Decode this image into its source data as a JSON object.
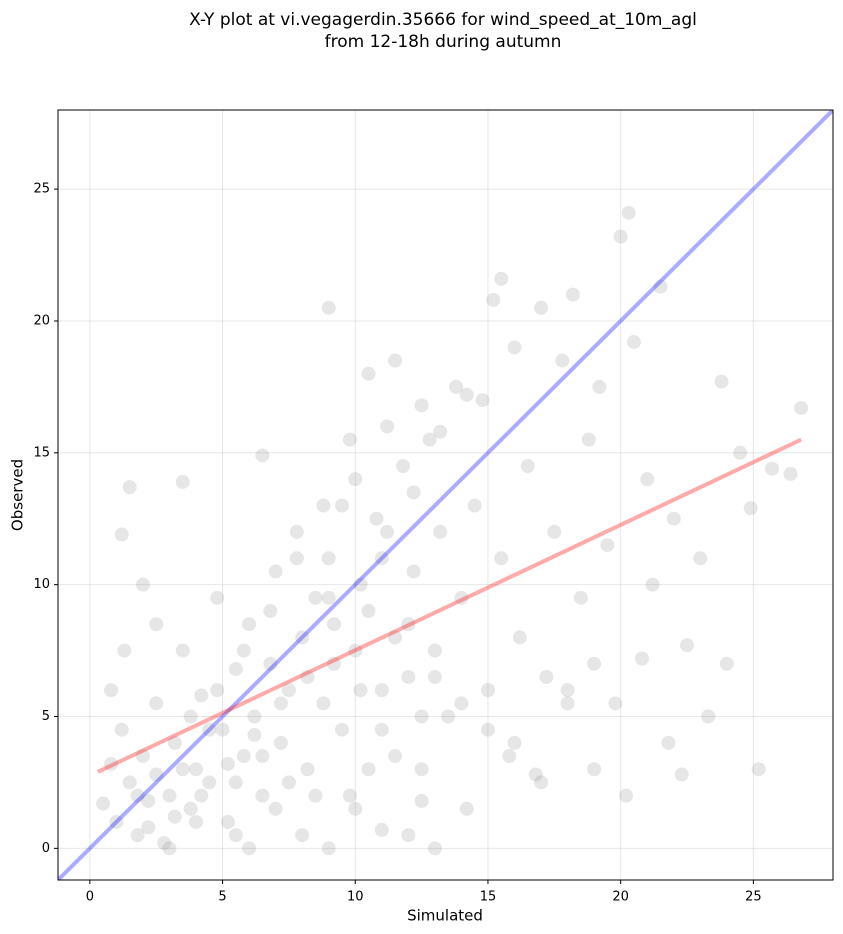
{
  "chart_data": {
    "type": "scatter",
    "title": "X-Y plot at vi.vegagerdin.35666 for wind_speed_at_10m_agl",
    "subtitle": "from 12-18h during autumn",
    "x_label": "Simulated",
    "y_label": "Observed",
    "xlim": [
      -1.2,
      28.0
    ],
    "ylim": [
      -1.2,
      28.0
    ],
    "xticks": [
      0,
      5,
      10,
      15,
      20,
      25
    ],
    "yticks": [
      0,
      5,
      10,
      15,
      20,
      25
    ],
    "grid": true,
    "series": [
      {
        "color": "#808080",
        "x": [
          0.5,
          0.8,
          1,
          1.2,
          1.5,
          1.8,
          2,
          2.2,
          2.5,
          2.8,
          3,
          3.2,
          3.5,
          3.8,
          4,
          4.2,
          4.5,
          4.8,
          5,
          5.2,
          5.5,
          5.8,
          6,
          6.2,
          6.5,
          6.8,
          7,
          7.2,
          7.5,
          7.8,
          8,
          8.2,
          8.5,
          8.8,
          9,
          9.2,
          9.5,
          9.8,
          10,
          10.2,
          10.5,
          10.8,
          11,
          11.2,
          11.5,
          11.8,
          12,
          12.2,
          12.5,
          12.8,
          13,
          13.2,
          13.5,
          13.8,
          14,
          14.2,
          14.5,
          14.8,
          15,
          15.2,
          15.5,
          15.8,
          16,
          16.2,
          16.5,
          16.8,
          17,
          17.2,
          17.5,
          17.8,
          18,
          18.2,
          18.5,
          18.8,
          19,
          19.2,
          19.5,
          19.8,
          20,
          20.2,
          20.5,
          20.8,
          21,
          21.2,
          21.5,
          21.8,
          22,
          22.3,
          22.5,
          23,
          23.3,
          23.8,
          24,
          24.5,
          24.9,
          25.2,
          25.7,
          26.4,
          26.8,
          20.3,
          9,
          15.5,
          1.5,
          2,
          3.5,
          6.5,
          1.2,
          0.8,
          1.3,
          2.5,
          3,
          4,
          5.5,
          6,
          7,
          8,
          9,
          10,
          11,
          12,
          13,
          12.5,
          11.5,
          10.5,
          9.5,
          8.5,
          7.5,
          6.5,
          5.5,
          4.5,
          3.5,
          2.5,
          1.8,
          2.2,
          3.2,
          4.2,
          5.2,
          6.2,
          7.2,
          8.2,
          9.2,
          10.2,
          11.2,
          12.2,
          13.2,
          14.2,
          10.5,
          11.5,
          12.5,
          9.8,
          8.8,
          7.8,
          6.8,
          5.8,
          4.8,
          3.8,
          11,
          12,
          13,
          14,
          15,
          16,
          17,
          18,
          19,
          12.5,
          11,
          10,
          9
        ],
        "values": [
          1.7,
          3.2,
          1,
          4.5,
          2.5,
          0.5,
          3.5,
          1.8,
          5.5,
          0.2,
          2,
          4,
          7.5,
          1.5,
          3,
          5.8,
          2.5,
          9.5,
          4.5,
          1,
          6.8,
          3.5,
          8.5,
          5,
          2,
          7,
          10.5,
          4,
          6,
          12,
          8,
          3,
          9.5,
          5.5,
          11,
          7,
          13,
          2,
          14,
          6,
          9,
          12.5,
          4.5,
          16,
          8,
          14.5,
          6.5,
          10.5,
          3,
          15.5,
          7.5,
          12,
          5,
          17.5,
          9.5,
          1.5,
          13,
          17,
          6,
          20.8,
          11,
          3.5,
          19,
          8,
          14.5,
          2.8,
          20.5,
          6.5,
          12,
          18.5,
          5.5,
          21,
          9.5,
          15.5,
          3,
          17.5,
          11.5,
          5.5,
          23.2,
          2,
          19.2,
          7.2,
          14,
          10,
          21.3,
          4,
          12.5,
          2.8,
          7.7,
          11,
          5,
          17.7,
          7,
          15,
          12.9,
          3,
          14.4,
          14.2,
          16.7,
          24.1,
          20.5,
          21.6,
          13.7,
          10,
          13.9,
          14.9,
          11.9,
          6,
          7.5,
          8.5,
          0,
          1,
          0.5,
          0,
          1.5,
          0.5,
          0,
          1.5,
          0.7,
          0.5,
          0,
          1.8,
          3.5,
          3,
          4.5,
          2,
          2.5,
          3.5,
          2.5,
          4.5,
          3,
          2.8,
          2,
          0.8,
          1.2,
          2,
          3.2,
          4.3,
          5.5,
          6.5,
          8.5,
          10,
          12,
          13.5,
          15.8,
          17.2,
          18,
          18.5,
          16.8,
          15.5,
          13,
          11,
          9,
          7.5,
          6,
          5,
          11,
          8.5,
          6.5,
          5.5,
          4.5,
          4,
          2.5,
          6,
          7,
          5,
          6,
          7.5,
          9.5
        ]
      }
    ],
    "reference_lines": [
      {
        "color": "#0000ff",
        "x": [
          -1.2,
          28.0
        ],
        "values": [
          -1.2,
          28.0
        ]
      },
      {
        "color": "#ff0000",
        "x": [
          0.3,
          26.8
        ],
        "values": [
          2.9,
          15.5
        ]
      }
    ]
  }
}
